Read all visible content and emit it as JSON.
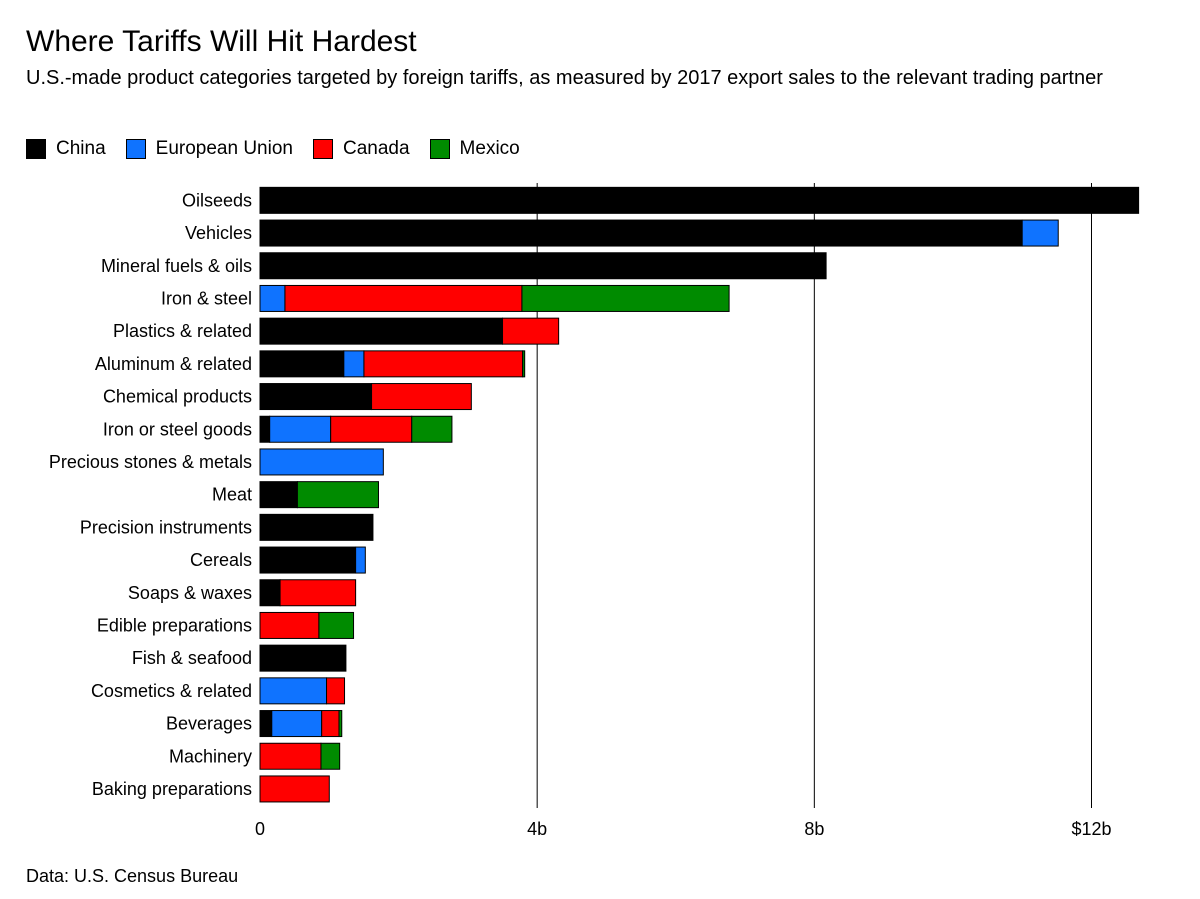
{
  "title": "Where Tariffs Will Hit Hardest",
  "subtitle": "U.S.-made product categories targeted by foreign tariffs, as measured by 2017 export sales to the relevant trading partner",
  "source": "Data: U.S. Census Bureau",
  "colors": {
    "China": "#000000",
    "European Union": "#0f73ff",
    "Canada": "#ff0000",
    "Mexico": "#008b00"
  },
  "chart_data": {
    "type": "bar",
    "orientation": "horizontal",
    "stacked": true,
    "unit": "billions of US dollars",
    "xlim": [
      0,
      12.7
    ],
    "xticks": [
      {
        "value": 0,
        "label": "0"
      },
      {
        "value": 4,
        "label": "4b"
      },
      {
        "value": 8,
        "label": "8b"
      },
      {
        "value": 12,
        "label": "$12b"
      }
    ],
    "grid": "vertical",
    "legend": "top-left",
    "categories": [
      "Oilseeds",
      "Vehicles",
      "Mineral fuels & oils",
      "Iron & steel",
      "Plastics & related",
      "Aluminum & related",
      "Chemical products",
      "Iron or steel goods",
      "Precious stones & metals",
      "Meat",
      "Precision instruments",
      "Cereals",
      "Soaps & waxes",
      "Edible preparations",
      "Fish & seafood",
      "Cosmetics & related",
      "Beverages",
      "Machinery",
      "Baking preparations"
    ],
    "series": [
      {
        "name": "China",
        "values": [
          12.68,
          11.0,
          8.17,
          0.0,
          3.5,
          1.21,
          1.61,
          0.14,
          0.0,
          0.54,
          1.63,
          1.38,
          0.29,
          0.0,
          1.24,
          0.0,
          0.17,
          0.0,
          0.0
        ]
      },
      {
        "name": "European Union",
        "values": [
          0.0,
          0.52,
          0.0,
          0.36,
          0.0,
          0.29,
          0.0,
          0.88,
          1.78,
          0.0,
          0.0,
          0.14,
          0.0,
          0.0,
          0.0,
          0.96,
          0.72,
          0.0,
          0.0
        ]
      },
      {
        "name": "Canada",
        "values": [
          0.0,
          0.0,
          0.0,
          3.42,
          0.81,
          2.29,
          1.44,
          1.17,
          0.0,
          0.0,
          0.0,
          0.0,
          1.09,
          0.85,
          0.0,
          0.26,
          0.25,
          0.88,
          1.0
        ]
      },
      {
        "name": "Mexico",
        "values": [
          0.0,
          0.0,
          0.0,
          2.99,
          0.0,
          0.03,
          0.0,
          0.58,
          0.0,
          1.17,
          0.0,
          0.0,
          0.0,
          0.5,
          0.0,
          0.0,
          0.04,
          0.27,
          0.0
        ]
      }
    ]
  }
}
